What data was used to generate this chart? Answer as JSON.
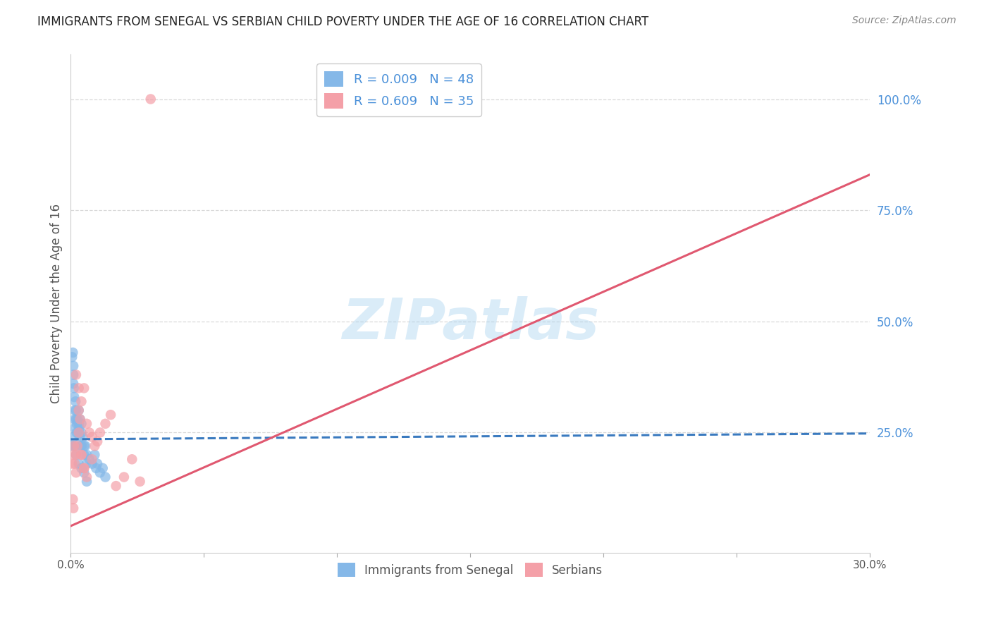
{
  "title": "IMMIGRANTS FROM SENEGAL VS SERBIAN CHILD POVERTY UNDER THE AGE OF 16 CORRELATION CHART",
  "source": "Source: ZipAtlas.com",
  "ylabel": "Child Poverty Under the Age of 16",
  "xlabel": "",
  "xlim": [
    0.0,
    0.3
  ],
  "ylim": [
    -0.02,
    1.1
  ],
  "xticks": [
    0.0,
    0.05,
    0.1,
    0.15,
    0.2,
    0.25,
    0.3
  ],
  "xtick_labels": [
    "0.0%",
    "",
    "",
    "",
    "",
    "",
    "30.0%"
  ],
  "ytick_labels_right": [
    25.0,
    50.0,
    75.0,
    100.0
  ],
  "grid_color": "#d0d0d0",
  "background_color": "#ffffff",
  "watermark": "ZIPatlas",
  "watermark_color": "#aed6f1",
  "senegal": {
    "name": "Immigrants from Senegal",
    "R": 0.009,
    "N": 48,
    "color": "#85b8e8",
    "line_color": "#3a7abf",
    "line_style": "--",
    "x": [
      0.0005,
      0.0008,
      0.001,
      0.001,
      0.001,
      0.0012,
      0.0013,
      0.0015,
      0.0015,
      0.0016,
      0.0018,
      0.002,
      0.002,
      0.0022,
      0.0022,
      0.0025,
      0.003,
      0.003,
      0.003,
      0.0032,
      0.0033,
      0.0035,
      0.0038,
      0.004,
      0.004,
      0.0042,
      0.0045,
      0.005,
      0.005,
      0.0055,
      0.006,
      0.006,
      0.007,
      0.008,
      0.009,
      0.0095,
      0.01,
      0.011,
      0.012,
      0.013,
      0.0005,
      0.001,
      0.0015,
      0.002,
      0.003,
      0.004,
      0.005,
      0.006
    ],
    "y": [
      0.42,
      0.43,
      0.4,
      0.38,
      0.36,
      0.35,
      0.33,
      0.3,
      0.28,
      0.26,
      0.32,
      0.3,
      0.28,
      0.27,
      0.25,
      0.28,
      0.3,
      0.27,
      0.25,
      0.26,
      0.24,
      0.28,
      0.22,
      0.27,
      0.25,
      0.22,
      0.24,
      0.22,
      0.2,
      0.22,
      0.2,
      0.18,
      0.19,
      0.18,
      0.2,
      0.17,
      0.18,
      0.16,
      0.17,
      0.15,
      0.22,
      0.24,
      0.22,
      0.2,
      0.18,
      0.17,
      0.16,
      0.14
    ],
    "trend_x": [
      0.0,
      0.3
    ],
    "trend_y": [
      0.235,
      0.248
    ]
  },
  "serbian": {
    "name": "Serbians",
    "R": 0.609,
    "N": 35,
    "color": "#f4a0a8",
    "line_color": "#e05870",
    "line_style": "-",
    "x": [
      0.0005,
      0.001,
      0.0012,
      0.0015,
      0.002,
      0.002,
      0.0025,
      0.003,
      0.003,
      0.0035,
      0.004,
      0.004,
      0.005,
      0.005,
      0.006,
      0.007,
      0.008,
      0.009,
      0.01,
      0.011,
      0.013,
      0.015,
      0.017,
      0.02,
      0.023,
      0.026,
      0.03,
      0.002,
      0.003,
      0.004,
      0.005,
      0.006,
      0.008,
      0.001,
      0.0008
    ],
    "y": [
      0.18,
      0.2,
      0.22,
      0.18,
      0.16,
      0.2,
      0.22,
      0.25,
      0.3,
      0.28,
      0.2,
      0.32,
      0.35,
      0.17,
      0.27,
      0.25,
      0.24,
      0.22,
      0.23,
      0.25,
      0.27,
      0.29,
      0.13,
      0.15,
      0.19,
      0.14,
      1.0,
      0.38,
      0.35,
      0.2,
      0.17,
      0.15,
      0.19,
      0.08,
      0.1
    ],
    "trend_x": [
      0.0,
      0.3
    ],
    "trend_y": [
      0.04,
      0.83
    ]
  },
  "legend": {
    "entries": [
      {
        "label": "R = 0.009   N = 48",
        "color": "#85b8e8"
      },
      {
        "label": "R = 0.609   N = 35",
        "color": "#f4a0a8"
      }
    ]
  }
}
